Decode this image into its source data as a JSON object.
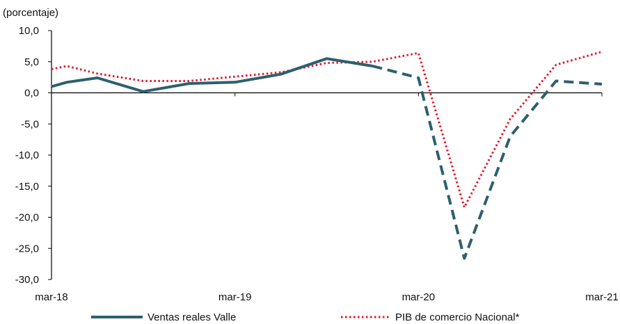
{
  "chart_data": {
    "type": "line",
    "title": "",
    "ylabel": "(porcentaje)",
    "xlabel": "",
    "ylim": [
      -30,
      10
    ],
    "yticks": [
      10,
      5,
      0,
      -5,
      -10,
      -15,
      -20,
      -25,
      -30
    ],
    "ytick_labels": [
      "10,0",
      "5,0",
      "0,0",
      "-5,0",
      "-10,0",
      "-15,0",
      "-20,0",
      "-25,0",
      "-30,0"
    ],
    "xlim": [
      "2018-03",
      "2021-03"
    ],
    "xticks": [
      "2018-03",
      "2019-03",
      "2020-03",
      "2021-03"
    ],
    "xtick_labels": [
      "mar-18",
      "mar-19",
      "mar-20",
      "mar-21"
    ],
    "legend_position": "bottom",
    "series": [
      {
        "name": "Ventas reales Valle",
        "color": "#2e5f6e",
        "style": "solid-then-dashed",
        "x": [
          "2018-03",
          "2018-04",
          "2018-06",
          "2018-09",
          "2018-12",
          "2019-03",
          "2019-06",
          "2019-09",
          "2019-12",
          "2020-03",
          "2020-06",
          "2020-09",
          "2020-12",
          "2021-03"
        ],
        "values": [
          1.0,
          1.7,
          2.4,
          0.2,
          1.5,
          1.7,
          3.0,
          5.5,
          4.3,
          2.4,
          -26.6,
          -7.0,
          1.9,
          1.4
        ],
        "dashed_from": "2019-12"
      },
      {
        "name": "PIB de comercio Nacional*",
        "color": "#e2182d",
        "style": "dotted",
        "x": [
          "2018-03",
          "2018-04",
          "2018-06",
          "2018-09",
          "2018-12",
          "2019-03",
          "2019-06",
          "2019-09",
          "2019-12",
          "2020-03",
          "2020-06",
          "2020-09",
          "2020-12",
          "2021-03"
        ],
        "values": [
          3.8,
          4.3,
          3.1,
          1.9,
          1.9,
          2.6,
          3.3,
          4.8,
          5.0,
          6.4,
          -18.4,
          -4.2,
          4.5,
          6.6
        ]
      }
    ]
  }
}
